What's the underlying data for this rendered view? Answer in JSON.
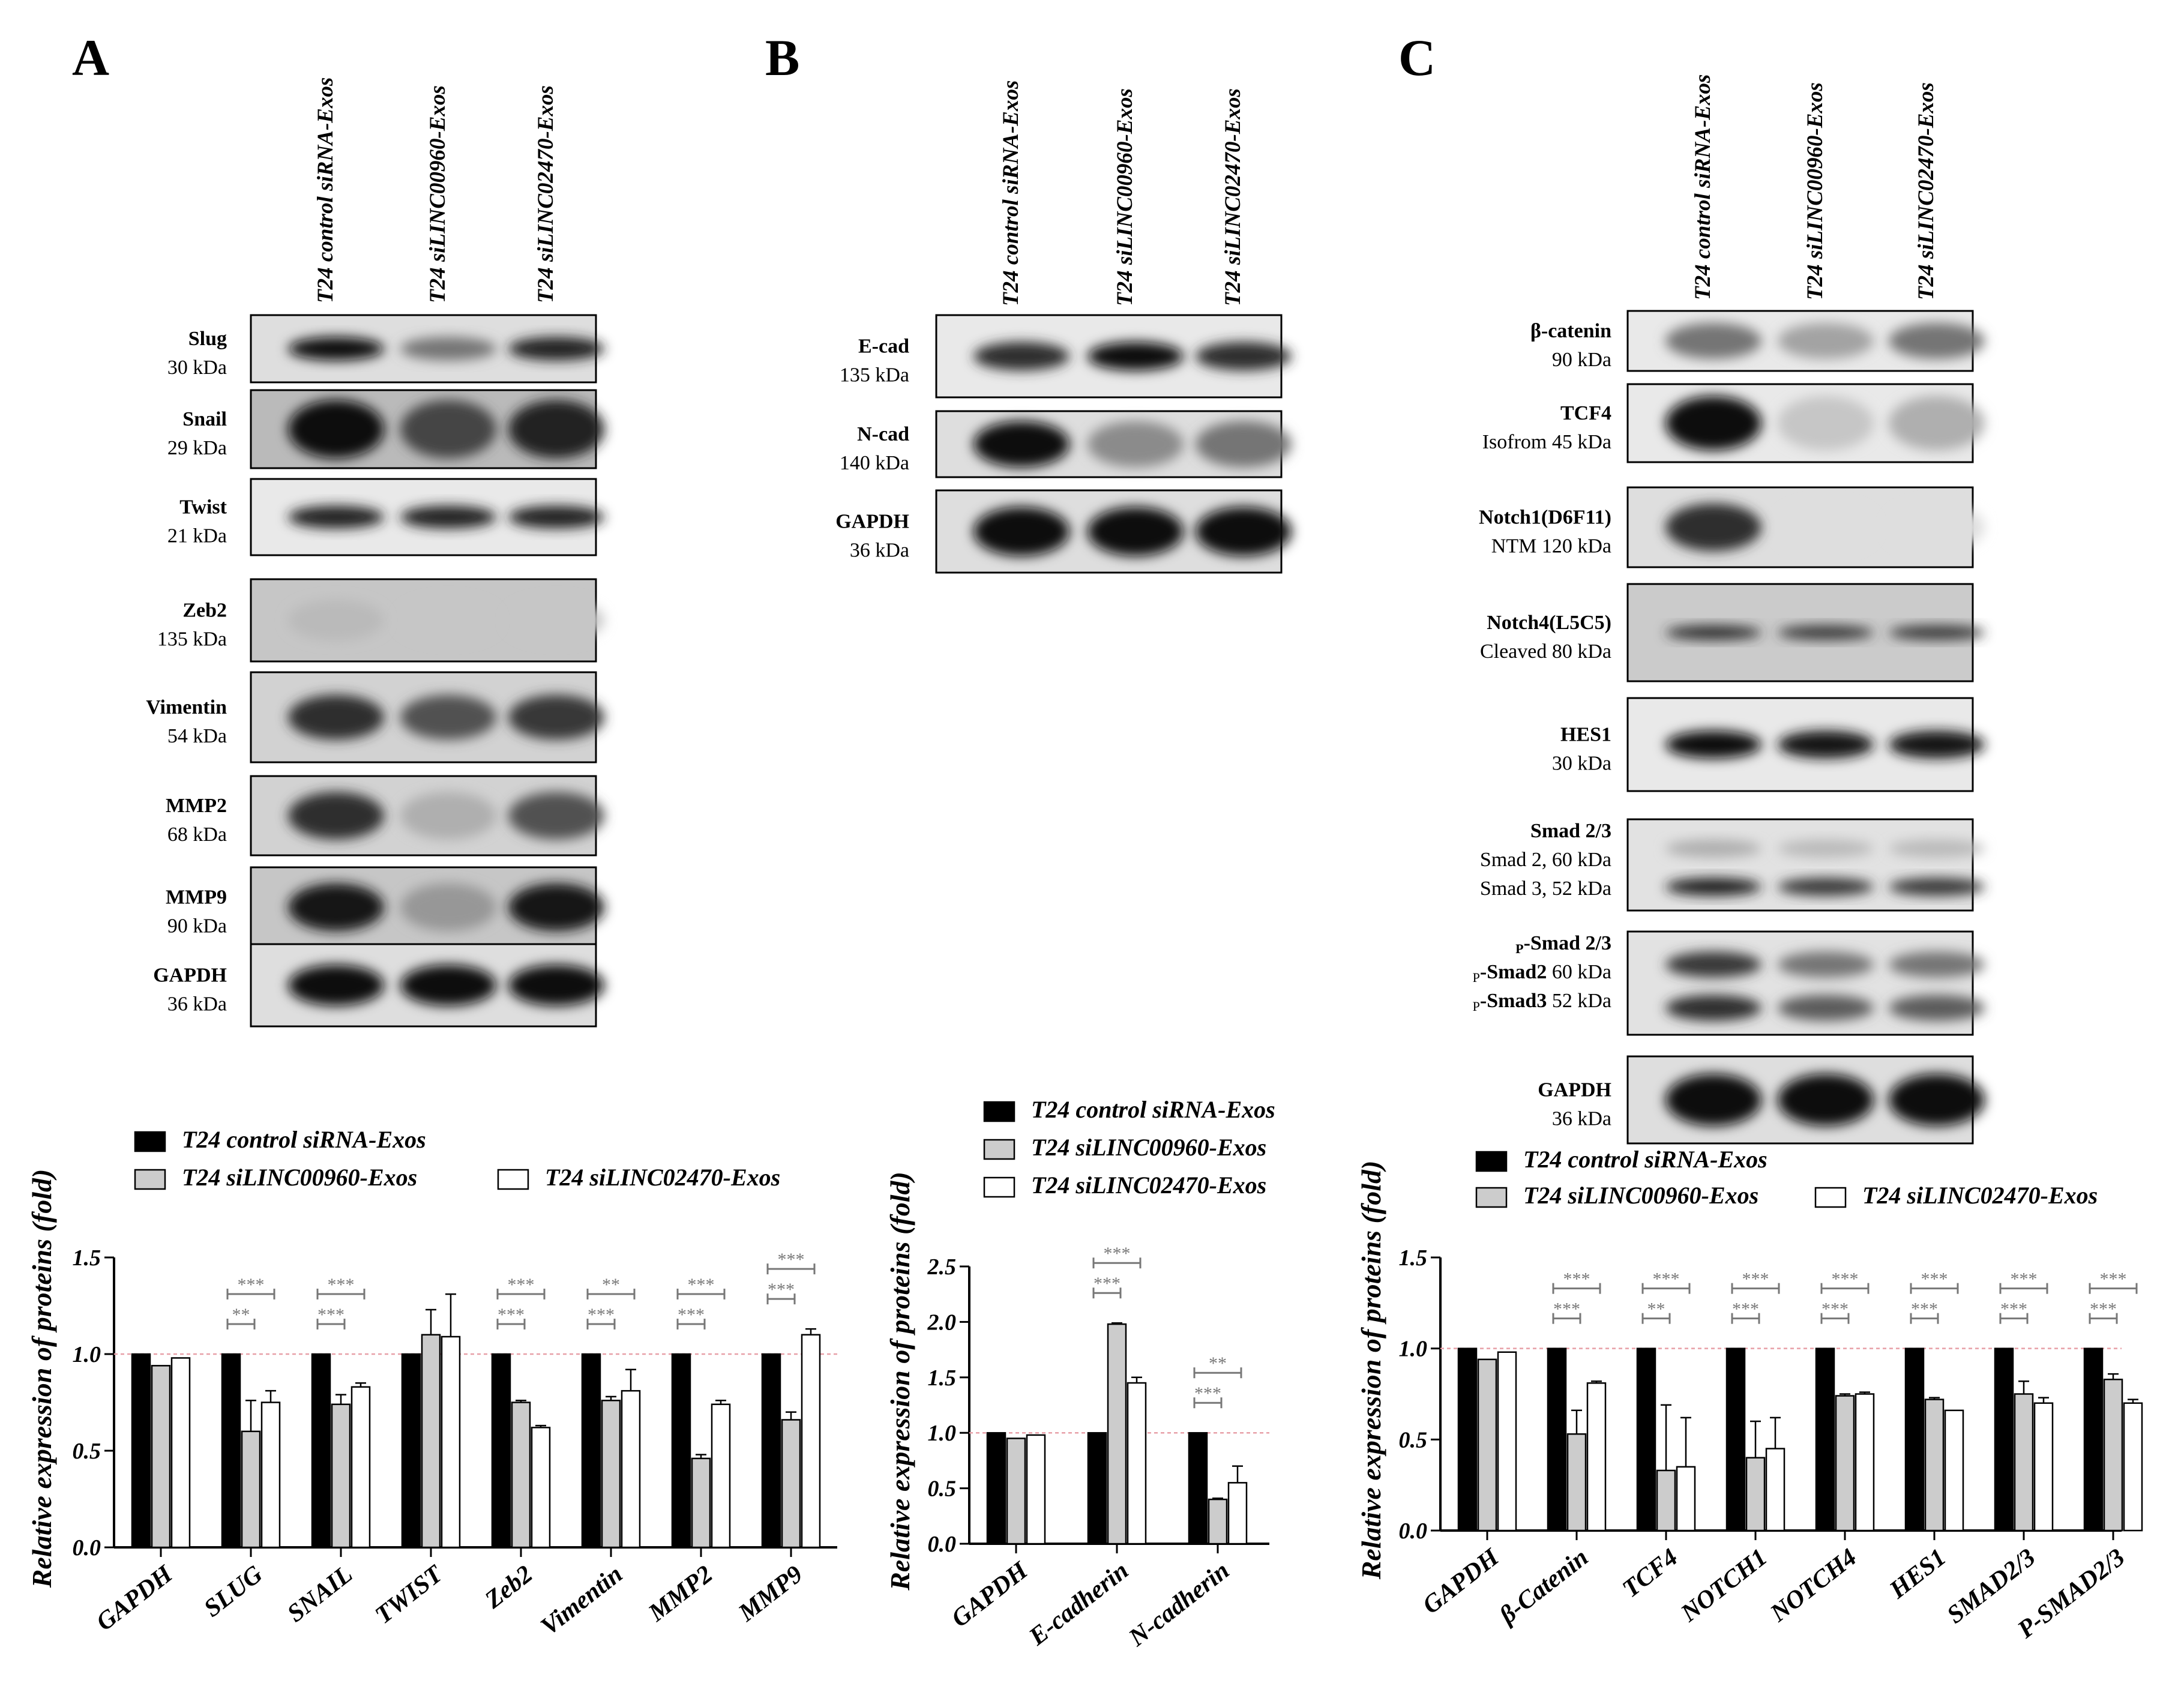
{
  "panels": {
    "A": {
      "letter": "A",
      "lanes": [
        "T24 control siRNA-Exos",
        "T24 siLINC00960-Exos",
        "T24 siLINC02470-Exos"
      ],
      "blots": [
        {
          "name": "Slug",
          "size": "30 kDa",
          "bands": [
            [
              1.0
            ],
            [
              0.55
            ],
            [
              0.9
            ]
          ],
          "bg": 0.1,
          "band_h": 0.35
        },
        {
          "name": "Snail",
          "size": "29 kDa",
          "bands": [
            [
              1.0
            ],
            [
              0.75
            ],
            [
              0.9
            ]
          ],
          "bg": 0.25,
          "band_h": 0.75
        },
        {
          "name": "Twist",
          "size": "21 kDa",
          "bands": [
            [
              0.9
            ],
            [
              0.9
            ],
            [
              0.9
            ]
          ],
          "bg": 0.05,
          "band_h": 0.3
        },
        {
          "name": "Zeb2",
          "size": "135 kDa",
          "bands": [
            [
              0.25
            ],
            [
              0.2
            ],
            [
              0.2
            ]
          ],
          "bg": 0.2,
          "band_h": 0.5
        },
        {
          "name": "Vimentin",
          "size": "54 kDa",
          "bands": [
            [
              0.85
            ],
            [
              0.7
            ],
            [
              0.8
            ]
          ],
          "bg": 0.15,
          "band_h": 0.5
        },
        {
          "name": "MMP2",
          "size": "68 kDa",
          "bands": [
            [
              0.85
            ],
            [
              0.3
            ],
            [
              0.7
            ]
          ],
          "bg": 0.15,
          "band_h": 0.6
        },
        {
          "name": "MMP9",
          "size": "90 kDa",
          "bands": [
            [
              0.95
            ],
            [
              0.4
            ],
            [
              0.95
            ]
          ],
          "bg": 0.2,
          "band_h": 0.6
        },
        {
          "name": "GAPDH",
          "size": "36 kDa",
          "bands": [
            [
              1.0
            ],
            [
              1.0
            ],
            [
              1.0
            ]
          ],
          "bg": 0.1,
          "band_h": 0.5
        }
      ]
    },
    "B": {
      "letter": "B",
      "lanes": [
        "T24 control siRNA-Exos",
        "T24 siLINC00960-Exos",
        "T24 siLINC02470-Exos"
      ],
      "blots": [
        {
          "name": "E-cad",
          "size": "135 kDa",
          "bands": [
            [
              0.85
            ],
            [
              1.0
            ],
            [
              0.85
            ]
          ],
          "bg": 0.05,
          "band_h": 0.35
        },
        {
          "name": "N-cad",
          "size": "140 kDa",
          "bands": [
            [
              1.0
            ],
            [
              0.45
            ],
            [
              0.55
            ]
          ],
          "bg": 0.1,
          "band_h": 0.7
        },
        {
          "name": "GAPDH",
          "size": "36 kDa",
          "bands": [
            [
              1.0
            ],
            [
              1.0
            ],
            [
              1.0
            ]
          ],
          "bg": 0.1,
          "band_h": 0.6
        }
      ]
    },
    "C": {
      "letter": "C",
      "lanes": [
        "T24 control siRNA-Exos",
        "T24 siLINC00960-Exos",
        "T24 siLINC02470-Exos"
      ],
      "blots": [
        {
          "name": "β-catenin",
          "size": "90 kDa",
          "bands": [
            [
              0.55
            ],
            [
              0.35
            ],
            [
              0.55
            ]
          ],
          "bg": 0.05,
          "band_h": 0.6
        },
        {
          "name": "TCF4",
          "size": "Isofrom  45 kDa",
          "bands": [
            [
              1.0
            ],
            [
              0.2
            ],
            [
              0.3
            ]
          ],
          "bg": 0.05,
          "band_h": 0.7
        },
        {
          "name": "Notch1(D6F11)",
          "size": "NTM 120 kDa",
          "bands": [
            [
              0.85
            ],
            [
              0.1
            ],
            [
              0.1
            ]
          ],
          "bg": 0.1,
          "band_h": 0.6
        },
        {
          "name": "Notch4(L5C5)",
          "size": "Cleaved  80 kDa",
          "bands": [
            [
              0.85
            ],
            [
              0.8
            ],
            [
              0.8
            ]
          ],
          "bg": 0.18,
          "band_h": 0.15
        },
        {
          "name": "HES1",
          "size": "30 kDa",
          "bands": [
            [
              1.0
            ],
            [
              0.95
            ],
            [
              0.95
            ]
          ],
          "bg": 0.05,
          "band_h": 0.3
        },
        {
          "name": "Smad 2/3",
          "size": "Smad 2, 60 kDa",
          "size2": "Smad 3, 52 kDa",
          "bands": [
            [
              0.3,
              0.9
            ],
            [
              0.25,
              0.8
            ],
            [
              0.25,
              0.8
            ]
          ],
          "bg": 0.08,
          "band_h": 0.22
        },
        {
          "name": "p-Smad 2/3",
          "sub_prefix": "P",
          "name_main": "-Smad 2/3",
          "size": "-Smad2 60 kDa",
          "size2": "-Smad3 52 kDa",
          "size_prefix": "P",
          "bands": [
            [
              0.8,
              0.85
            ],
            [
              0.55,
              0.65
            ],
            [
              0.55,
              0.65
            ]
          ],
          "bg": 0.08,
          "band_h": 0.28
        },
        {
          "name": "GAPDH",
          "size": "36 kDa",
          "bands": [
            [
              1.0
            ],
            [
              1.0
            ],
            [
              1.0
            ]
          ],
          "bg": 0.1,
          "band_h": 0.6
        }
      ]
    }
  },
  "legend_labels": [
    "T24 control siRNA-Exos",
    "T24 siLINC00960-Exos",
    "T24 siLINC02470-Exos"
  ],
  "colors": {
    "control": "#000000",
    "siLINC00960": "#cccccc",
    "siLINC02470": "#ffffff",
    "reference": "#e8a0a8",
    "significance": "#777777"
  },
  "chart_data": [
    {
      "type": "bar",
      "panel": "A",
      "categories": [
        "GAPDH",
        "SLUG",
        "SNAIL",
        "TWIST",
        "Zeb2",
        "Vimentin",
        "MMP2",
        "MMP9"
      ],
      "series": [
        {
          "name": "T24 control siRNA-Exos",
          "values": [
            1.0,
            1.0,
            1.0,
            1.0,
            1.0,
            1.0,
            1.0,
            1.0
          ],
          "errors": [
            0,
            0,
            0,
            0,
            0,
            0,
            0,
            0
          ]
        },
        {
          "name": "T24 siLINC00960-Exos",
          "values": [
            0.94,
            0.6,
            0.74,
            1.1,
            0.75,
            0.76,
            0.46,
            0.66
          ],
          "errors": [
            0,
            0.16,
            0.05,
            0.13,
            0.01,
            0.02,
            0.02,
            0.04
          ]
        },
        {
          "name": "T24 siLINC02470-Exos",
          "values": [
            0.98,
            0.75,
            0.83,
            1.09,
            0.62,
            0.81,
            0.74,
            1.1
          ],
          "errors": [
            0,
            0.06,
            0.02,
            0.22,
            0.01,
            0.11,
            0.02,
            0.03
          ]
        }
      ],
      "significance": [
        {
          "inner": "",
          "outer": ""
        },
        {
          "inner": "**",
          "outer": "***"
        },
        {
          "inner": "***",
          "outer": "***"
        },
        {
          "inner": "",
          "outer": ""
        },
        {
          "inner": "***",
          "outer": "***"
        },
        {
          "inner": "***",
          "outer": "**"
        },
        {
          "inner": "***",
          "outer": "***"
        },
        {
          "inner": "***",
          "outer": "***"
        }
      ],
      "ylabel": "Relative expression of proteins (fold)",
      "xlabel": "",
      "ylim": [
        0,
        1.5
      ],
      "yticks": [
        "0.0",
        "0.5",
        "1.0",
        "1.5"
      ],
      "reference_line": 1.0,
      "legend": "top"
    },
    {
      "type": "bar",
      "panel": "B",
      "categories": [
        "GAPDH",
        "E-cadherin",
        "N-cadherin"
      ],
      "series": [
        {
          "name": "T24 control siRNA-Exos",
          "values": [
            1.0,
            1.0,
            1.0
          ],
          "errors": [
            0,
            0,
            0
          ]
        },
        {
          "name": "T24 siLINC00960-Exos",
          "values": [
            0.95,
            1.98,
            0.4
          ],
          "errors": [
            0,
            0.01,
            0.01
          ]
        },
        {
          "name": "T24 siLINC02470-Exos",
          "values": [
            0.98,
            1.45,
            0.55
          ],
          "errors": [
            0,
            0.05,
            0.15
          ]
        }
      ],
      "significance": [
        {
          "inner": "",
          "outer": ""
        },
        {
          "inner": "***",
          "outer": "***"
        },
        {
          "inner": "***",
          "outer": "**"
        }
      ],
      "ylabel": "Relative expression of proteins (fold)",
      "xlabel": "",
      "ylim": [
        0,
        2.5
      ],
      "yticks": [
        "0.0",
        "0.5",
        "1.0",
        "1.5",
        "2.0",
        "2.5"
      ],
      "reference_line": 1.0,
      "legend": "top"
    },
    {
      "type": "bar",
      "panel": "C",
      "categories": [
        "GAPDH",
        "β-Catenin",
        "TCF4",
        "NOTCH1",
        "NOTCH4",
        "HES1",
        "SMAD2/3",
        "P-SMAD2/3"
      ],
      "series": [
        {
          "name": "T24 control siRNA-Exos",
          "values": [
            1.0,
            1.0,
            1.0,
            1.0,
            1.0,
            1.0,
            1.0,
            1.0
          ],
          "errors": [
            0,
            0,
            0,
            0,
            0,
            0,
            0,
            0
          ]
        },
        {
          "name": "T24 siLINC00960-Exos",
          "values": [
            0.94,
            0.53,
            0.33,
            0.4,
            0.74,
            0.72,
            0.75,
            0.83
          ],
          "errors": [
            0,
            0.13,
            0.36,
            0.2,
            0.01,
            0.01,
            0.07,
            0.03
          ]
        },
        {
          "name": "T24 siLINC02470-Exos",
          "values": [
            0.98,
            0.81,
            0.35,
            0.45,
            0.75,
            0.66,
            0.7,
            0.7
          ],
          "errors": [
            0,
            0.01,
            0.27,
            0.17,
            0.01,
            0,
            0.03,
            0.02
          ]
        }
      ],
      "significance": [
        {
          "inner": "",
          "outer": ""
        },
        {
          "inner": "***",
          "outer": "***"
        },
        {
          "inner": "**",
          "outer": "***"
        },
        {
          "inner": "***",
          "outer": "***"
        },
        {
          "inner": "***",
          "outer": "***"
        },
        {
          "inner": "***",
          "outer": "***"
        },
        {
          "inner": "***",
          "outer": "***"
        },
        {
          "inner": "***",
          "outer": "***"
        }
      ],
      "ylabel": "Relative expression of proteins (fold)",
      "xlabel": "",
      "ylim": [
        0,
        1.5
      ],
      "yticks": [
        "0.0",
        "0.5",
        "1.0",
        "1.5"
      ],
      "reference_line": 1.0,
      "legend": "top"
    }
  ]
}
